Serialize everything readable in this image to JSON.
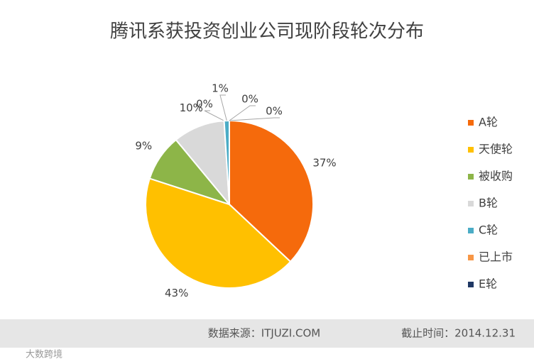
{
  "chart_data": {
    "type": "pie",
    "title": "腾讯系获投资创业公司现阶段轮次分布",
    "categories": [
      "A轮",
      "天使轮",
      "被收购",
      "B轮",
      null,
      "C轮",
      "已上市",
      "E轮"
    ],
    "values": [
      37,
      43,
      9,
      10,
      0,
      1,
      0,
      0
    ],
    "value_labels": [
      "37%",
      "43%",
      "9%",
      "10%",
      "0%",
      "1%",
      "0%",
      "0%"
    ],
    "colors": [
      "#f56a0c",
      "#ffc000",
      "#8db548",
      "#d9d9d9",
      "#5b9bd5",
      "#4bacc6",
      "#f79646",
      "#1f3864"
    ],
    "legend": "right"
  },
  "footer": {
    "source": "数据来源：ITJUZI.COM",
    "date": "截止时间：2014.12.31",
    "watermark": "大数跨境"
  }
}
